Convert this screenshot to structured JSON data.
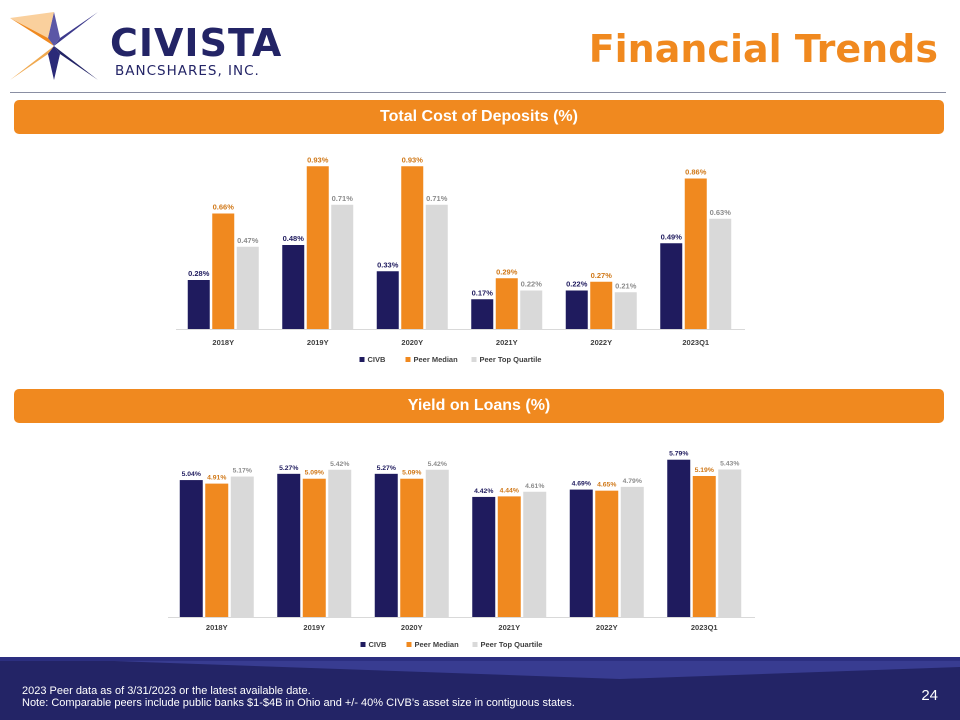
{
  "header": {
    "logo_name": "CIVISTA",
    "logo_sub": "BANCSHARES, INC.",
    "title": "Financial Trends"
  },
  "colors": {
    "civb": "#1f1b5e",
    "peer_median": "#f0891f",
    "peer_top": "#d9d9d9",
    "banner": "#f0891f"
  },
  "icons": {
    "logo": "civista-star-icon"
  },
  "chart_data": [
    {
      "type": "bar",
      "title": "Total Cost of Deposits (%)",
      "categories": [
        "2018Y",
        "2019Y",
        "2020Y",
        "2021Y",
        "2022Y",
        "2023Q1"
      ],
      "series": [
        {
          "name": "CIVB",
          "values": [
            0.28,
            0.48,
            0.33,
            0.17,
            0.22,
            0.49
          ],
          "labels": [
            "0.28%",
            "0.48%",
            "0.33%",
            "0.17%",
            "0.22%",
            "0.49%"
          ]
        },
        {
          "name": "Peer Median",
          "values": [
            0.66,
            0.93,
            0.93,
            0.29,
            0.27,
            0.86
          ],
          "labels": [
            "0.66%",
            "0.93%",
            "0.93%",
            "0.29%",
            "0.27%",
            "0.86%"
          ]
        },
        {
          "name": "Peer Top Quartile",
          "values": [
            0.47,
            0.71,
            0.71,
            0.22,
            0.21,
            0.63
          ],
          "labels": [
            "0.47%",
            "0.71%",
            "0.71%",
            "0.22%",
            "0.21%",
            "0.63%"
          ]
        }
      ],
      "ylim": [
        0,
        1.0
      ],
      "legend": "bottom",
      "grid": false
    },
    {
      "type": "bar",
      "title": "Yield on Loans (%)",
      "categories": [
        "2018Y",
        "2019Y",
        "2020Y",
        "2021Y",
        "2022Y",
        "2023Q1"
      ],
      "series": [
        {
          "name": "CIVB",
          "values": [
            5.04,
            5.27,
            5.27,
            4.42,
            4.69,
            5.79
          ],
          "labels": [
            "5.04%",
            "5.27%",
            "5.27%",
            "4.42%",
            "4.69%",
            "5.79%"
          ]
        },
        {
          "name": "Peer Median",
          "values": [
            4.91,
            5.09,
            5.09,
            4.44,
            4.65,
            5.19
          ],
          "labels": [
            "4.91%",
            "5.09%",
            "5.09%",
            "4.44%",
            "4.65%",
            "5.19%"
          ]
        },
        {
          "name": "Peer Top Quartile",
          "values": [
            5.17,
            5.42,
            5.42,
            4.61,
            4.79,
            5.43
          ],
          "labels": [
            "5.17%",
            "5.42%",
            "5.42%",
            "4.61%",
            "4.79%",
            "5.43%"
          ]
        }
      ],
      "ylim": [
        0,
        6.0
      ],
      "legend": "bottom",
      "grid": false
    }
  ],
  "footer": {
    "note1": "2023 Peer data as of 3/31/2023 or the latest available date.",
    "note2": "Note: Comparable peers include public banks $1-$4B in Ohio and +/- 40% CIVB’s asset size in contiguous states.",
    "page_number": "24"
  }
}
